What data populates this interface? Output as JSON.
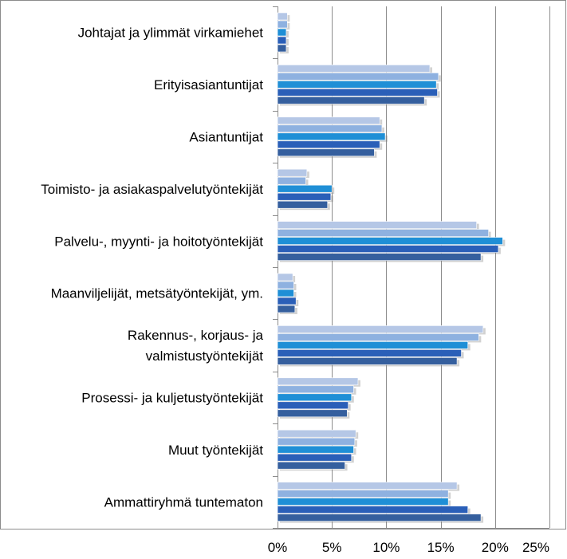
{
  "chart_data": {
    "type": "bar",
    "orientation": "horizontal",
    "categories": [
      [
        "Johtajat ja ylimmät virkamiehet"
      ],
      [
        "Erityisasiantuntijat"
      ],
      [
        "Asiantuntijat"
      ],
      [
        "Toimisto- ja asiakaspalvelutyöntekijät"
      ],
      [
        "Palvelu-, myynti- ja hoitotyöntekijät"
      ],
      [
        "Maanviljelijät, metsätyöntekijät, ym."
      ],
      [
        "Rakennus-, korjaus- ja",
        "valmistustyöntekijät"
      ],
      [
        "Prosessi- ja kuljetustyöntekijät"
      ],
      [
        "Muut työntekijät"
      ],
      [
        "Ammattiryhmä tuntematon"
      ]
    ],
    "series": [
      {
        "color": "#b5c7e6",
        "values": [
          0.9,
          14.0,
          9.4,
          2.7,
          18.3,
          1.4,
          18.9,
          7.4,
          7.2,
          16.5
        ]
      },
      {
        "color": "#8eb1e0",
        "values": [
          0.9,
          14.8,
          9.6,
          2.6,
          19.4,
          1.5,
          18.5,
          7.0,
          7.1,
          15.7
        ]
      },
      {
        "color": "#1f8fd6",
        "values": [
          0.8,
          14.6,
          9.9,
          5.0,
          20.7,
          1.5,
          17.5,
          6.8,
          7.0,
          15.7
        ]
      },
      {
        "color": "#2a5fb8",
        "values": [
          0.8,
          14.7,
          9.4,
          4.9,
          20.3,
          1.7,
          16.9,
          6.5,
          6.8,
          17.5
        ]
      },
      {
        "color": "#355f9e",
        "values": [
          0.8,
          13.5,
          8.9,
          4.6,
          18.7,
          1.6,
          16.5,
          6.4,
          6.2,
          18.7
        ]
      }
    ],
    "xlim": [
      0,
      25
    ],
    "xticks": [
      "0%",
      "5%",
      "10%",
      "15%",
      "20%",
      "25%"
    ],
    "grid": true
  }
}
